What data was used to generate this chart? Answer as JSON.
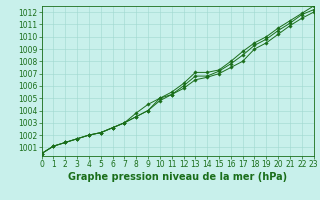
{
  "x": [
    0,
    1,
    2,
    3,
    4,
    5,
    6,
    7,
    8,
    9,
    10,
    11,
    12,
    13,
    14,
    15,
    16,
    17,
    18,
    19,
    20,
    21,
    22,
    23
  ],
  "y_top": [
    1000.5,
    1001.1,
    1001.4,
    1001.7,
    1002.0,
    1002.2,
    1002.6,
    1003.0,
    1003.8,
    1004.5,
    1005.0,
    1005.5,
    1006.2,
    1007.1,
    1007.1,
    1007.3,
    1008.0,
    1008.8,
    1009.5,
    1010.0,
    1010.7,
    1011.3,
    1011.9,
    1012.5
  ],
  "y_mid": [
    1000.5,
    1001.1,
    1001.4,
    1001.7,
    1002.0,
    1002.2,
    1002.6,
    1003.0,
    1003.5,
    1004.0,
    1005.0,
    1005.3,
    1006.0,
    1006.8,
    1006.8,
    1007.2,
    1007.8,
    1008.5,
    1009.3,
    1009.8,
    1010.5,
    1011.1,
    1011.8,
    1012.2
  ],
  "y_bot": [
    1000.5,
    1001.1,
    1001.4,
    1001.7,
    1002.0,
    1002.2,
    1002.6,
    1003.0,
    1003.5,
    1004.0,
    1004.8,
    1005.3,
    1005.8,
    1006.5,
    1006.7,
    1007.0,
    1007.5,
    1008.0,
    1009.0,
    1009.5,
    1010.2,
    1010.9,
    1011.5,
    1012.0
  ],
  "ylim": [
    1000.3,
    1012.5
  ],
  "xlim": [
    0,
    23
  ],
  "yticks": [
    1001,
    1002,
    1003,
    1004,
    1005,
    1006,
    1007,
    1008,
    1009,
    1010,
    1011,
    1012
  ],
  "xticks": [
    0,
    1,
    2,
    3,
    4,
    5,
    6,
    7,
    8,
    9,
    10,
    11,
    12,
    13,
    14,
    15,
    16,
    17,
    18,
    19,
    20,
    21,
    22,
    23
  ],
  "line_color": "#1a6e1a",
  "bg_color": "#c8f0eb",
  "grid_color": "#a0d8d0",
  "xlabel": "Graphe pression niveau de la mer (hPa)",
  "tick_fontsize": 5.5,
  "label_fontsize": 7.0,
  "marker": "D",
  "marker_size": 1.8,
  "linewidth": 0.7
}
